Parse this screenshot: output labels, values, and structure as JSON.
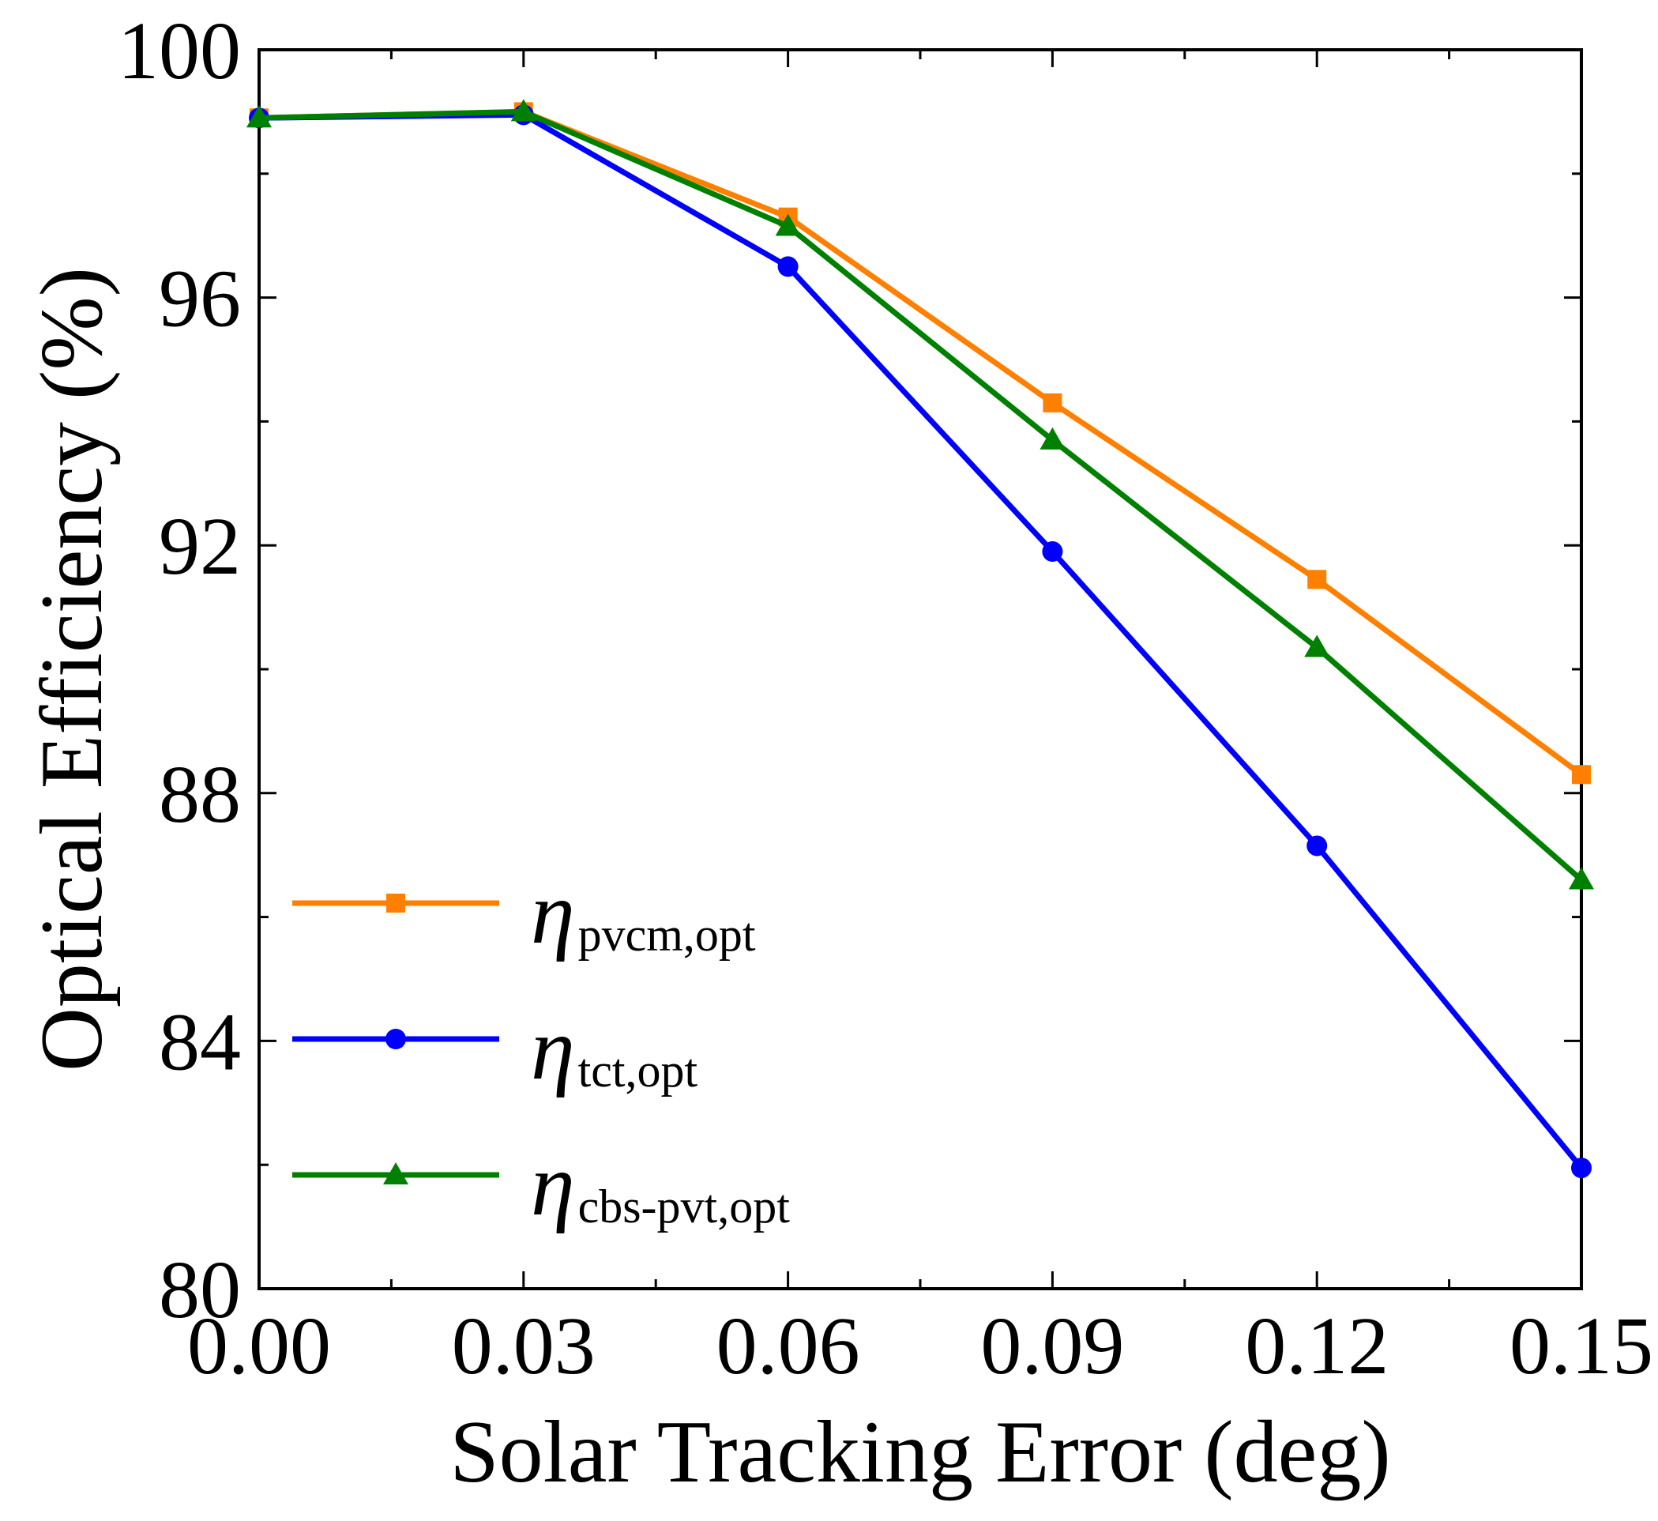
{
  "chart_data": {
    "type": "line",
    "title": "",
    "xlabel": "Solar Tracking Error (deg)",
    "ylabel": "Optical Efficiency (%)",
    "xlim": [
      0.0,
      0.15
    ],
    "ylim": [
      80,
      100
    ],
    "xticks": [
      0.0,
      0.03,
      0.06,
      0.09,
      0.12,
      0.15
    ],
    "xtick_labels": [
      "0.00",
      "0.03",
      "0.06",
      "0.09",
      "0.12",
      "0.15"
    ],
    "yticks": [
      80,
      84,
      88,
      92,
      96,
      100
    ],
    "ytick_labels": [
      "80",
      "84",
      "88",
      "92",
      "96",
      "100"
    ],
    "grid": false,
    "legend_position": "bottom-left",
    "x": [
      0.0,
      0.03,
      0.06,
      0.09,
      0.12,
      0.15
    ],
    "series": [
      {
        "name": "pvcm,opt",
        "symbol": "η",
        "subscript": "pvcm,opt",
        "color": "#ff8000",
        "marker": "square",
        "values": [
          98.9,
          99.0,
          97.3,
          94.3,
          91.45,
          88.3
        ]
      },
      {
        "name": "tct,opt",
        "symbol": "η",
        "subscript": "tct,opt",
        "color": "#0000ff",
        "marker": "circle",
        "values": [
          98.9,
          98.95,
          96.5,
          91.9,
          87.15,
          81.95
        ]
      },
      {
        "name": "cbs-pvt,opt",
        "symbol": "η",
        "subscript": "cbs-pvt,opt",
        "color": "#008000",
        "marker": "triangle",
        "values": [
          98.9,
          99.0,
          97.15,
          93.7,
          90.35,
          86.6
        ]
      }
    ]
  }
}
